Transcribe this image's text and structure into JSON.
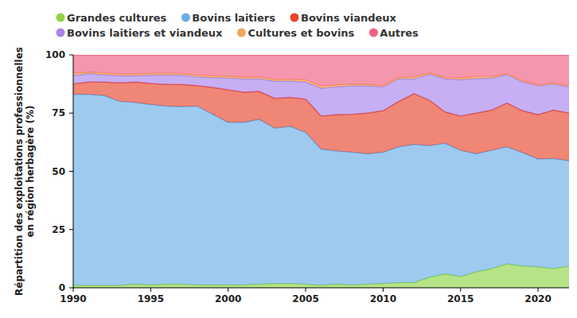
{
  "chart_data": {
    "type": "area",
    "stacked": true,
    "grid": false,
    "legend": "top",
    "y_label": [
      "Répartition des exploitations professionnelles",
      "en région herbagère (%)"
    ],
    "x": [
      1990,
      1991,
      1992,
      1993,
      1994,
      1995,
      1996,
      1997,
      1998,
      1999,
      2000,
      2001,
      2002,
      2003,
      2004,
      2005,
      2006,
      2007,
      2008,
      2009,
      2010,
      2011,
      2012,
      2013,
      2014,
      2015,
      2016,
      2017,
      2018,
      2019,
      2020,
      2021,
      2022
    ],
    "xlim": [
      1990,
      2022
    ],
    "xticks": [
      1990,
      1995,
      2000,
      2005,
      2010,
      2015,
      2020
    ],
    "ylim": [
      0,
      100
    ],
    "yticks": [
      0,
      25,
      50,
      75,
      100
    ],
    "series": [
      {
        "name": "Grandes cultures",
        "color": "#8fd448",
        "values": [
          1,
          1,
          1,
          1,
          1.5,
          1.2,
          1.5,
          1.5,
          1.2,
          1.2,
          1.2,
          1.2,
          1.5,
          1.8,
          1.8,
          1.5,
          1,
          1.5,
          1.2,
          1.5,
          1.8,
          2.2,
          2.2,
          4.5,
          6,
          4.8,
          6.8,
          8.2,
          10.2,
          9.3,
          9,
          8.3,
          9.2
        ]
      },
      {
        "name": "Bovins laitiers",
        "color": "#6aaee8",
        "values": [
          82,
          82,
          81.5,
          79,
          78,
          77.5,
          76.5,
          76.2,
          76.8,
          73.3,
          69.8,
          69.8,
          70.8,
          66.7,
          67.5,
          65.2,
          58.5,
          57.2,
          57,
          56,
          56.4,
          58.3,
          59.3,
          56.5,
          56,
          54.2,
          50.7,
          50.8,
          50.3,
          48.7,
          46.3,
          47.2,
          45.3
        ]
      },
      {
        "name": "Bovins viandeux",
        "color": "#e8452c",
        "values": [
          4.5,
          5.3,
          5.8,
          8,
          8.8,
          9,
          9.3,
          9.6,
          8.8,
          11.5,
          14,
          13,
          12,
          12.8,
          12.4,
          14.3,
          14.2,
          15.6,
          16.3,
          17.5,
          17.8,
          19.5,
          21.8,
          19.5,
          13.5,
          14.7,
          17.5,
          17.3,
          18.8,
          18,
          19,
          20.8,
          20.5
        ]
      },
      {
        "name": "Bovins laitiers et viandeux",
        "color": "#a984ec",
        "values": [
          3.5,
          3.7,
          3.2,
          3,
          2.7,
          3.6,
          4,
          4,
          3.7,
          4.3,
          5,
          5.7,
          5.4,
          7.4,
          7,
          7.3,
          12,
          12,
          12.2,
          11.7,
          10.3,
          9.7,
          6.4,
          11.2,
          14.2,
          15.6,
          14.8,
          13.7,
          12.2,
          12.5,
          12.4,
          11.2,
          11.3
        ]
      },
      {
        "name": "Cultures et bovins",
        "color": "#f2a65a",
        "values": [
          1,
          0.5,
          0.7,
          0.7,
          0.7,
          0.7,
          0.7,
          0.7,
          0.7,
          0.7,
          0.7,
          0.7,
          0.7,
          0.7,
          0.7,
          0.9,
          0.8,
          0.7,
          0.7,
          0.6,
          0.5,
          0.6,
          0.8,
          0.5,
          0.5,
          0.7,
          0.8,
          0.7,
          0.3,
          0.3,
          0.3,
          0.3,
          0.3
        ]
      },
      {
        "name": "Autres",
        "color": "#f0607f",
        "values": [
          8,
          7.5,
          7.8,
          8.3,
          8.3,
          8,
          8,
          8,
          8.8,
          9,
          9.3,
          9.6,
          9.6,
          10.6,
          10.6,
          10.8,
          13.5,
          13,
          12.6,
          12.7,
          13.2,
          9.7,
          9.5,
          7.8,
          9.8,
          10,
          9.4,
          9.3,
          8.2,
          11.2,
          13,
          12.2,
          13.4
        ]
      }
    ]
  }
}
